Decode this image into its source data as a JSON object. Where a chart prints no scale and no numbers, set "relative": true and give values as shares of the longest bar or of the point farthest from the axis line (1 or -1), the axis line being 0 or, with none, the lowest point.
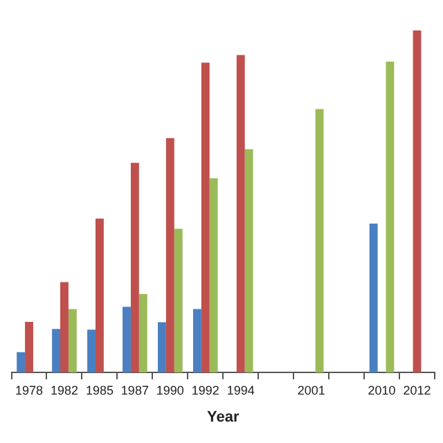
{
  "chart_data": {
    "type": "bar",
    "relative": true,
    "xlabel": "Year",
    "categories": [
      "1978",
      "1982",
      "1985",
      "1987",
      "1990",
      "1992",
      "1994",
      null,
      "2001",
      null,
      "2010",
      "2012"
    ],
    "series": [
      {
        "color": "#4a7fc1",
        "values": [
          0.059,
          0.127,
          0.125,
          0.192,
          0.147,
          0.185,
          null,
          null,
          null,
          null,
          0.435,
          null
        ]
      },
      {
        "color": "#c0504d",
        "values": [
          0.148,
          0.264,
          0.45,
          0.613,
          0.685,
          0.906,
          0.928,
          null,
          null,
          null,
          null,
          1
        ]
      },
      {
        "color": "#9bbb59",
        "values": [
          null,
          0.185,
          null,
          0.229,
          0.42,
          0.568,
          0.653,
          null,
          0.77,
          null,
          0.909,
          null
        ]
      }
    ],
    "legend": false,
    "grid": false
  }
}
